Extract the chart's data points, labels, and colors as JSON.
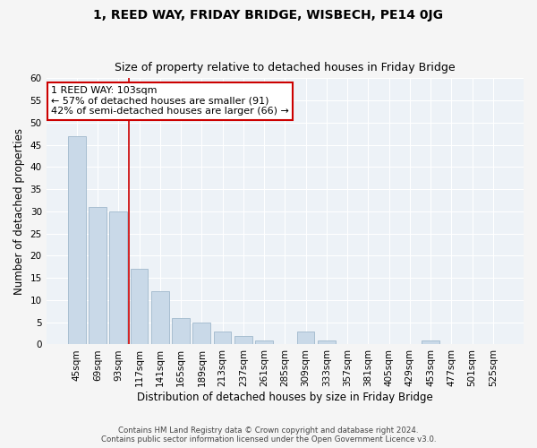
{
  "title": "1, REED WAY, FRIDAY BRIDGE, WISBECH, PE14 0JG",
  "subtitle": "Size of property relative to detached houses in Friday Bridge",
  "xlabel": "Distribution of detached houses by size in Friday Bridge",
  "ylabel": "Number of detached properties",
  "categories": [
    "45sqm",
    "69sqm",
    "93sqm",
    "117sqm",
    "141sqm",
    "165sqm",
    "189sqm",
    "213sqm",
    "237sqm",
    "261sqm",
    "285sqm",
    "309sqm",
    "333sqm",
    "357sqm",
    "381sqm",
    "405sqm",
    "429sqm",
    "453sqm",
    "477sqm",
    "501sqm",
    "525sqm"
  ],
  "values": [
    47,
    31,
    30,
    17,
    12,
    6,
    5,
    3,
    2,
    1,
    0,
    3,
    1,
    0,
    0,
    0,
    0,
    1,
    0,
    0,
    0
  ],
  "bar_color": "#c9d9e8",
  "bar_edge_color": "#a0b8cc",
  "property_line_x": 2.5,
  "annotation_text": "1 REED WAY: 103sqm\n← 57% of detached houses are smaller (91)\n42% of semi-detached houses are larger (66) →",
  "annotation_box_color": "#ffffff",
  "annotation_box_edge": "#cc0000",
  "property_line_color": "#cc0000",
  "ylim": [
    0,
    60
  ],
  "yticks": [
    0,
    5,
    10,
    15,
    20,
    25,
    30,
    35,
    40,
    45,
    50,
    55,
    60
  ],
  "background_color": "#edf2f7",
  "grid_color": "#ffffff",
  "footer_line1": "Contains HM Land Registry data © Crown copyright and database right 2024.",
  "footer_line2": "Contains public sector information licensed under the Open Government Licence v3.0.",
  "title_fontsize": 10,
  "subtitle_fontsize": 9,
  "xlabel_fontsize": 8.5,
  "ylabel_fontsize": 8.5,
  "annotation_fontsize": 8,
  "tick_fontsize": 7.5
}
